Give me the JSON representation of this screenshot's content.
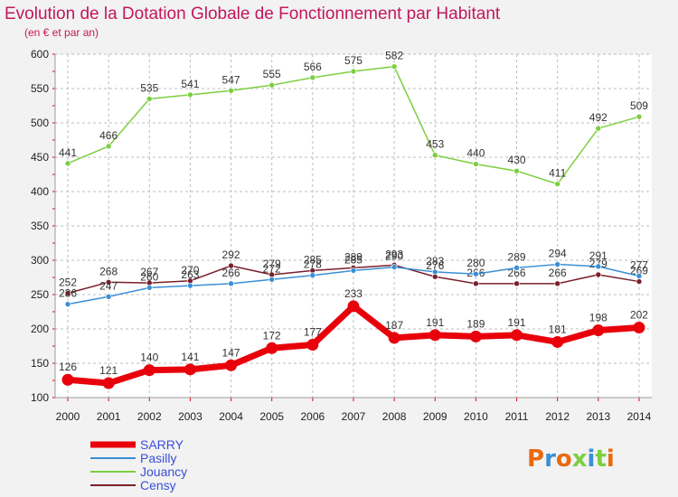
{
  "chart_data": {
    "type": "line",
    "title": "Evolution de la Dotation Globale de Fonctionnement par Habitant",
    "subtitle": "(en € et par an)",
    "x": [
      "2000",
      "2001",
      "2002",
      "2003",
      "2004",
      "2005",
      "2006",
      "2007",
      "2008",
      "2009",
      "2010",
      "2011",
      "2012",
      "2013",
      "2014"
    ],
    "ylim": [
      100,
      600
    ],
    "yticks": [
      100,
      150,
      200,
      250,
      300,
      350,
      400,
      450,
      500,
      550,
      600
    ],
    "grid": true,
    "legend_position": "bottom-left",
    "series": [
      {
        "name": "SARRY",
        "color": "#e8000b",
        "values": [
          126,
          121,
          140,
          141,
          147,
          172,
          177,
          233,
          187,
          191,
          189,
          191,
          181,
          198,
          202
        ]
      },
      {
        "name": "Pasilly",
        "color": "#3a8fd6",
        "values": [
          236,
          247,
          260,
          263,
          266,
          272,
          278,
          285,
          290,
          283,
          280,
          289,
          294,
          291,
          277
        ]
      },
      {
        "name": "Jouancy",
        "color": "#7ccf3f",
        "values": [
          441,
          466,
          535,
          541,
          547,
          555,
          566,
          575,
          582,
          453,
          440,
          430,
          411,
          492,
          509
        ]
      },
      {
        "name": "Censy",
        "color": "#7a1f2b",
        "values": [
          252,
          268,
          267,
          270,
          292,
          279,
          285,
          289,
          293,
          276,
          266,
          266,
          266,
          279,
          269
        ]
      }
    ]
  },
  "branding": {
    "logo_text": "Proxiti",
    "logo_colors": [
      "#e86a10",
      "#3a8fd6",
      "#e86a10",
      "#7ccf3f",
      "#3a8fd6",
      "#7ccf3f",
      "#e86a10"
    ]
  }
}
